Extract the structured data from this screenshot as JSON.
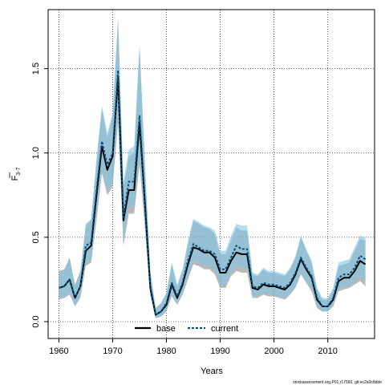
{
  "chart_data": {
    "type": "line",
    "xlabel": "Years",
    "ylabel": {
      "main": "F",
      "sub": "3-7"
    },
    "xlim": [
      1958,
      2018.7
    ],
    "ylim": [
      -0.1,
      1.85
    ],
    "x_ticks": [
      1960,
      1970,
      1980,
      1990,
      2000,
      2010
    ],
    "y_ticks": [
      0.0,
      0.5,
      1.0,
      1.5
    ],
    "y_tick_labels": [
      "0.0",
      "0.5",
      "1.0",
      "1.5"
    ],
    "grid": true,
    "legend_position": "bottom",
    "x": [
      1960,
      1961,
      1962,
      1963,
      1964,
      1965,
      1966,
      1967,
      1968,
      1969,
      1970,
      1971,
      1972,
      1973,
      1974,
      1975,
      1976,
      1977,
      1978,
      1979,
      1980,
      1981,
      1982,
      1983,
      1984,
      1985,
      1986,
      1987,
      1988,
      1989,
      1990,
      1991,
      1992,
      1993,
      1994,
      1995,
      1996,
      1997,
      1998,
      1999,
      2000,
      2001,
      2002,
      2003,
      2004,
      2005,
      2006,
      2007,
      2008,
      2009,
      2010,
      2011,
      2012,
      2013,
      2014,
      2015,
      2016,
      2017
    ],
    "series": [
      {
        "name": "base",
        "color": "#000000",
        "band_color": "#8a8a8a",
        "values": [
          0.2,
          0.21,
          0.25,
          0.14,
          0.21,
          0.42,
          0.45,
          0.75,
          1.04,
          0.9,
          0.98,
          1.45,
          0.6,
          0.78,
          0.78,
          1.18,
          0.7,
          0.2,
          0.04,
          0.06,
          0.1,
          0.22,
          0.14,
          0.22,
          0.34,
          0.44,
          0.43,
          0.41,
          0.41,
          0.38,
          0.29,
          0.29,
          0.36,
          0.41,
          0.4,
          0.4,
          0.2,
          0.19,
          0.22,
          0.21,
          0.21,
          0.2,
          0.19,
          0.22,
          0.28,
          0.37,
          0.31,
          0.26,
          0.13,
          0.09,
          0.09,
          0.13,
          0.24,
          0.26,
          0.26,
          0.3,
          0.36,
          0.34
        ],
        "lower": [
          0.13,
          0.14,
          0.16,
          0.09,
          0.14,
          0.33,
          0.35,
          0.6,
          0.88,
          0.75,
          0.8,
          1.18,
          0.45,
          0.64,
          0.64,
          0.93,
          0.55,
          0.15,
          0.02,
          0.03,
          0.06,
          0.15,
          0.1,
          0.16,
          0.25,
          0.34,
          0.33,
          0.31,
          0.31,
          0.28,
          0.2,
          0.2,
          0.27,
          0.3,
          0.29,
          0.29,
          0.14,
          0.14,
          0.16,
          0.15,
          0.15,
          0.14,
          0.13,
          0.16,
          0.2,
          0.28,
          0.23,
          0.18,
          0.08,
          0.06,
          0.06,
          0.09,
          0.18,
          0.19,
          0.2,
          0.22,
          0.24,
          0.21
        ],
        "upper": [
          0.3,
          0.31,
          0.38,
          0.22,
          0.3,
          0.57,
          0.6,
          0.95,
          1.26,
          1.09,
          1.22,
          1.8,
          0.8,
          0.98,
          1.0,
          1.62,
          0.92,
          0.29,
          0.08,
          0.11,
          0.17,
          0.34,
          0.21,
          0.3,
          0.46,
          0.6,
          0.58,
          0.56,
          0.55,
          0.52,
          0.4,
          0.4,
          0.48,
          0.56,
          0.54,
          0.54,
          0.28,
          0.27,
          0.31,
          0.29,
          0.29,
          0.28,
          0.27,
          0.31,
          0.38,
          0.5,
          0.42,
          0.35,
          0.19,
          0.13,
          0.13,
          0.19,
          0.33,
          0.34,
          0.35,
          0.42,
          0.49,
          0.48
        ]
      },
      {
        "name": "current",
        "color": "#0a4f7a",
        "band_color": "#7fc6e8",
        "values": [
          0.2,
          0.21,
          0.25,
          0.14,
          0.21,
          0.45,
          0.47,
          0.78,
          1.07,
          0.93,
          1.0,
          1.49,
          0.62,
          0.83,
          0.83,
          1.22,
          0.72,
          0.21,
          0.04,
          0.06,
          0.11,
          0.23,
          0.15,
          0.23,
          0.36,
          0.46,
          0.44,
          0.42,
          0.42,
          0.4,
          0.31,
          0.31,
          0.38,
          0.45,
          0.43,
          0.43,
          0.21,
          0.2,
          0.23,
          0.22,
          0.22,
          0.21,
          0.2,
          0.23,
          0.29,
          0.38,
          0.32,
          0.27,
          0.14,
          0.09,
          0.09,
          0.14,
          0.26,
          0.28,
          0.28,
          0.32,
          0.39,
          0.37
        ],
        "lower": [
          0.14,
          0.15,
          0.17,
          0.1,
          0.15,
          0.35,
          0.37,
          0.63,
          0.9,
          0.78,
          0.82,
          1.22,
          0.47,
          0.68,
          0.68,
          0.97,
          0.57,
          0.16,
          0.02,
          0.03,
          0.07,
          0.16,
          0.11,
          0.17,
          0.27,
          0.36,
          0.35,
          0.33,
          0.33,
          0.3,
          0.22,
          0.22,
          0.29,
          0.33,
          0.32,
          0.32,
          0.15,
          0.15,
          0.17,
          0.16,
          0.16,
          0.15,
          0.14,
          0.17,
          0.21,
          0.29,
          0.24,
          0.19,
          0.09,
          0.06,
          0.06,
          0.1,
          0.19,
          0.21,
          0.21,
          0.24,
          0.27,
          0.24
        ],
        "upper": [
          0.29,
          0.3,
          0.37,
          0.21,
          0.29,
          0.58,
          0.61,
          0.97,
          1.28,
          1.12,
          1.24,
          1.78,
          0.83,
          1.02,
          1.04,
          1.65,
          0.95,
          0.3,
          0.08,
          0.11,
          0.17,
          0.35,
          0.22,
          0.31,
          0.48,
          0.61,
          0.59,
          0.57,
          0.56,
          0.54,
          0.42,
          0.42,
          0.51,
          0.58,
          0.57,
          0.57,
          0.29,
          0.28,
          0.32,
          0.3,
          0.3,
          0.29,
          0.28,
          0.32,
          0.39,
          0.51,
          0.43,
          0.36,
          0.2,
          0.14,
          0.14,
          0.2,
          0.35,
          0.36,
          0.37,
          0.44,
          0.51,
          0.5
        ]
      }
    ],
    "footer": "stockassessment.org,P01,r17560, git:ec2a0c8dde"
  }
}
